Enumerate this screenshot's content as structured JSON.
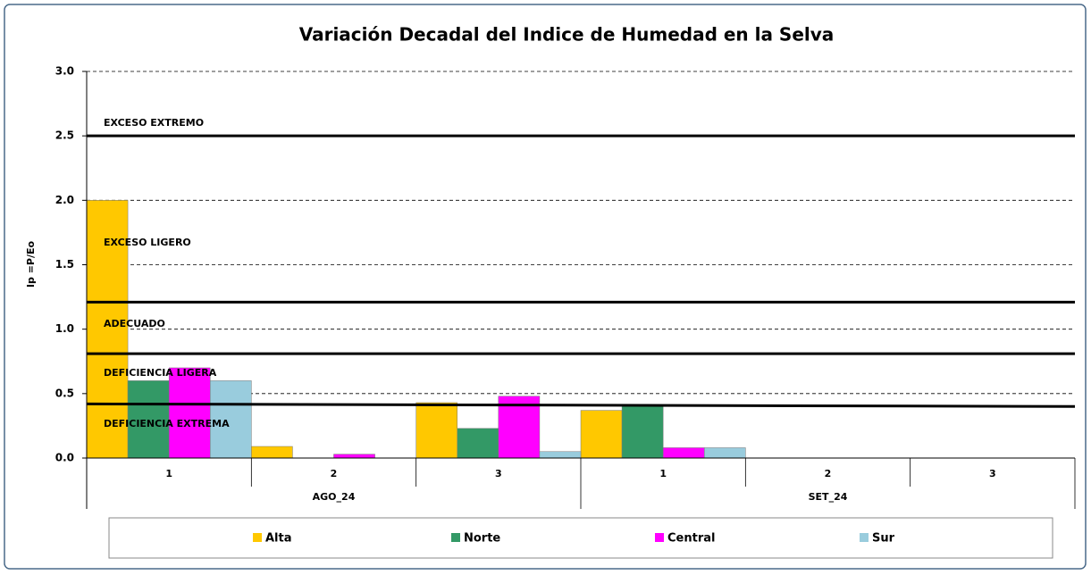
{
  "chart_data": {
    "type": "bar",
    "title": "Variación Decadal del Indice de Humedad en la Selva",
    "y_label": "Ip =P/Eo",
    "categories": [
      "1",
      "2",
      "3",
      "1",
      "2",
      "3"
    ],
    "category_groups": [
      "AGO_24",
      "AGO_24",
      "AGO_24",
      "SET_24",
      "SET_24",
      "SET_24"
    ],
    "series": [
      {
        "name": "Alta",
        "color": "#ffc800",
        "values": [
          2.0,
          0.09,
          0.43,
          0.37,
          null,
          null
        ]
      },
      {
        "name": "Norte",
        "color": "#339966",
        "values": [
          0.6,
          0,
          0.23,
          0.41,
          null,
          null
        ]
      },
      {
        "name": "Central",
        "color": "#ff00ff",
        "values": [
          0.7,
          0.03,
          0.48,
          0.08,
          null,
          null
        ]
      },
      {
        "name": "Sur",
        "color": "#99ccdd",
        "values": [
          0.6,
          0,
          0.05,
          0.08,
          null,
          null
        ]
      }
    ],
    "ylim": [
      0,
      3
    ],
    "yticks": [
      {
        "value": 0,
        "label": "0.0"
      },
      {
        "value": 0.5,
        "label": "0.5"
      },
      {
        "value": 1,
        "label": "1.0"
      },
      {
        "value": 1.5,
        "label": "1.5"
      },
      {
        "value": 2,
        "label": "2.0"
      },
      {
        "value": 2.5,
        "label": "2.5"
      },
      {
        "value": 3,
        "label": "3.0"
      }
    ],
    "grid": true,
    "reference_lines": [
      [
        2.5,
        2.5
      ],
      [
        1.21,
        1.21
      ],
      [
        0.81,
        0.81
      ],
      [
        0.42,
        0.4
      ]
    ],
    "annotations": [
      "EXCESO EXTREMO",
      "EXCESO LIGERO",
      "ADECUADO",
      "DEFICIENCIA LIGERA",
      "DEFICIENCIA EXTREMA"
    ],
    "legend": "bottom"
  }
}
